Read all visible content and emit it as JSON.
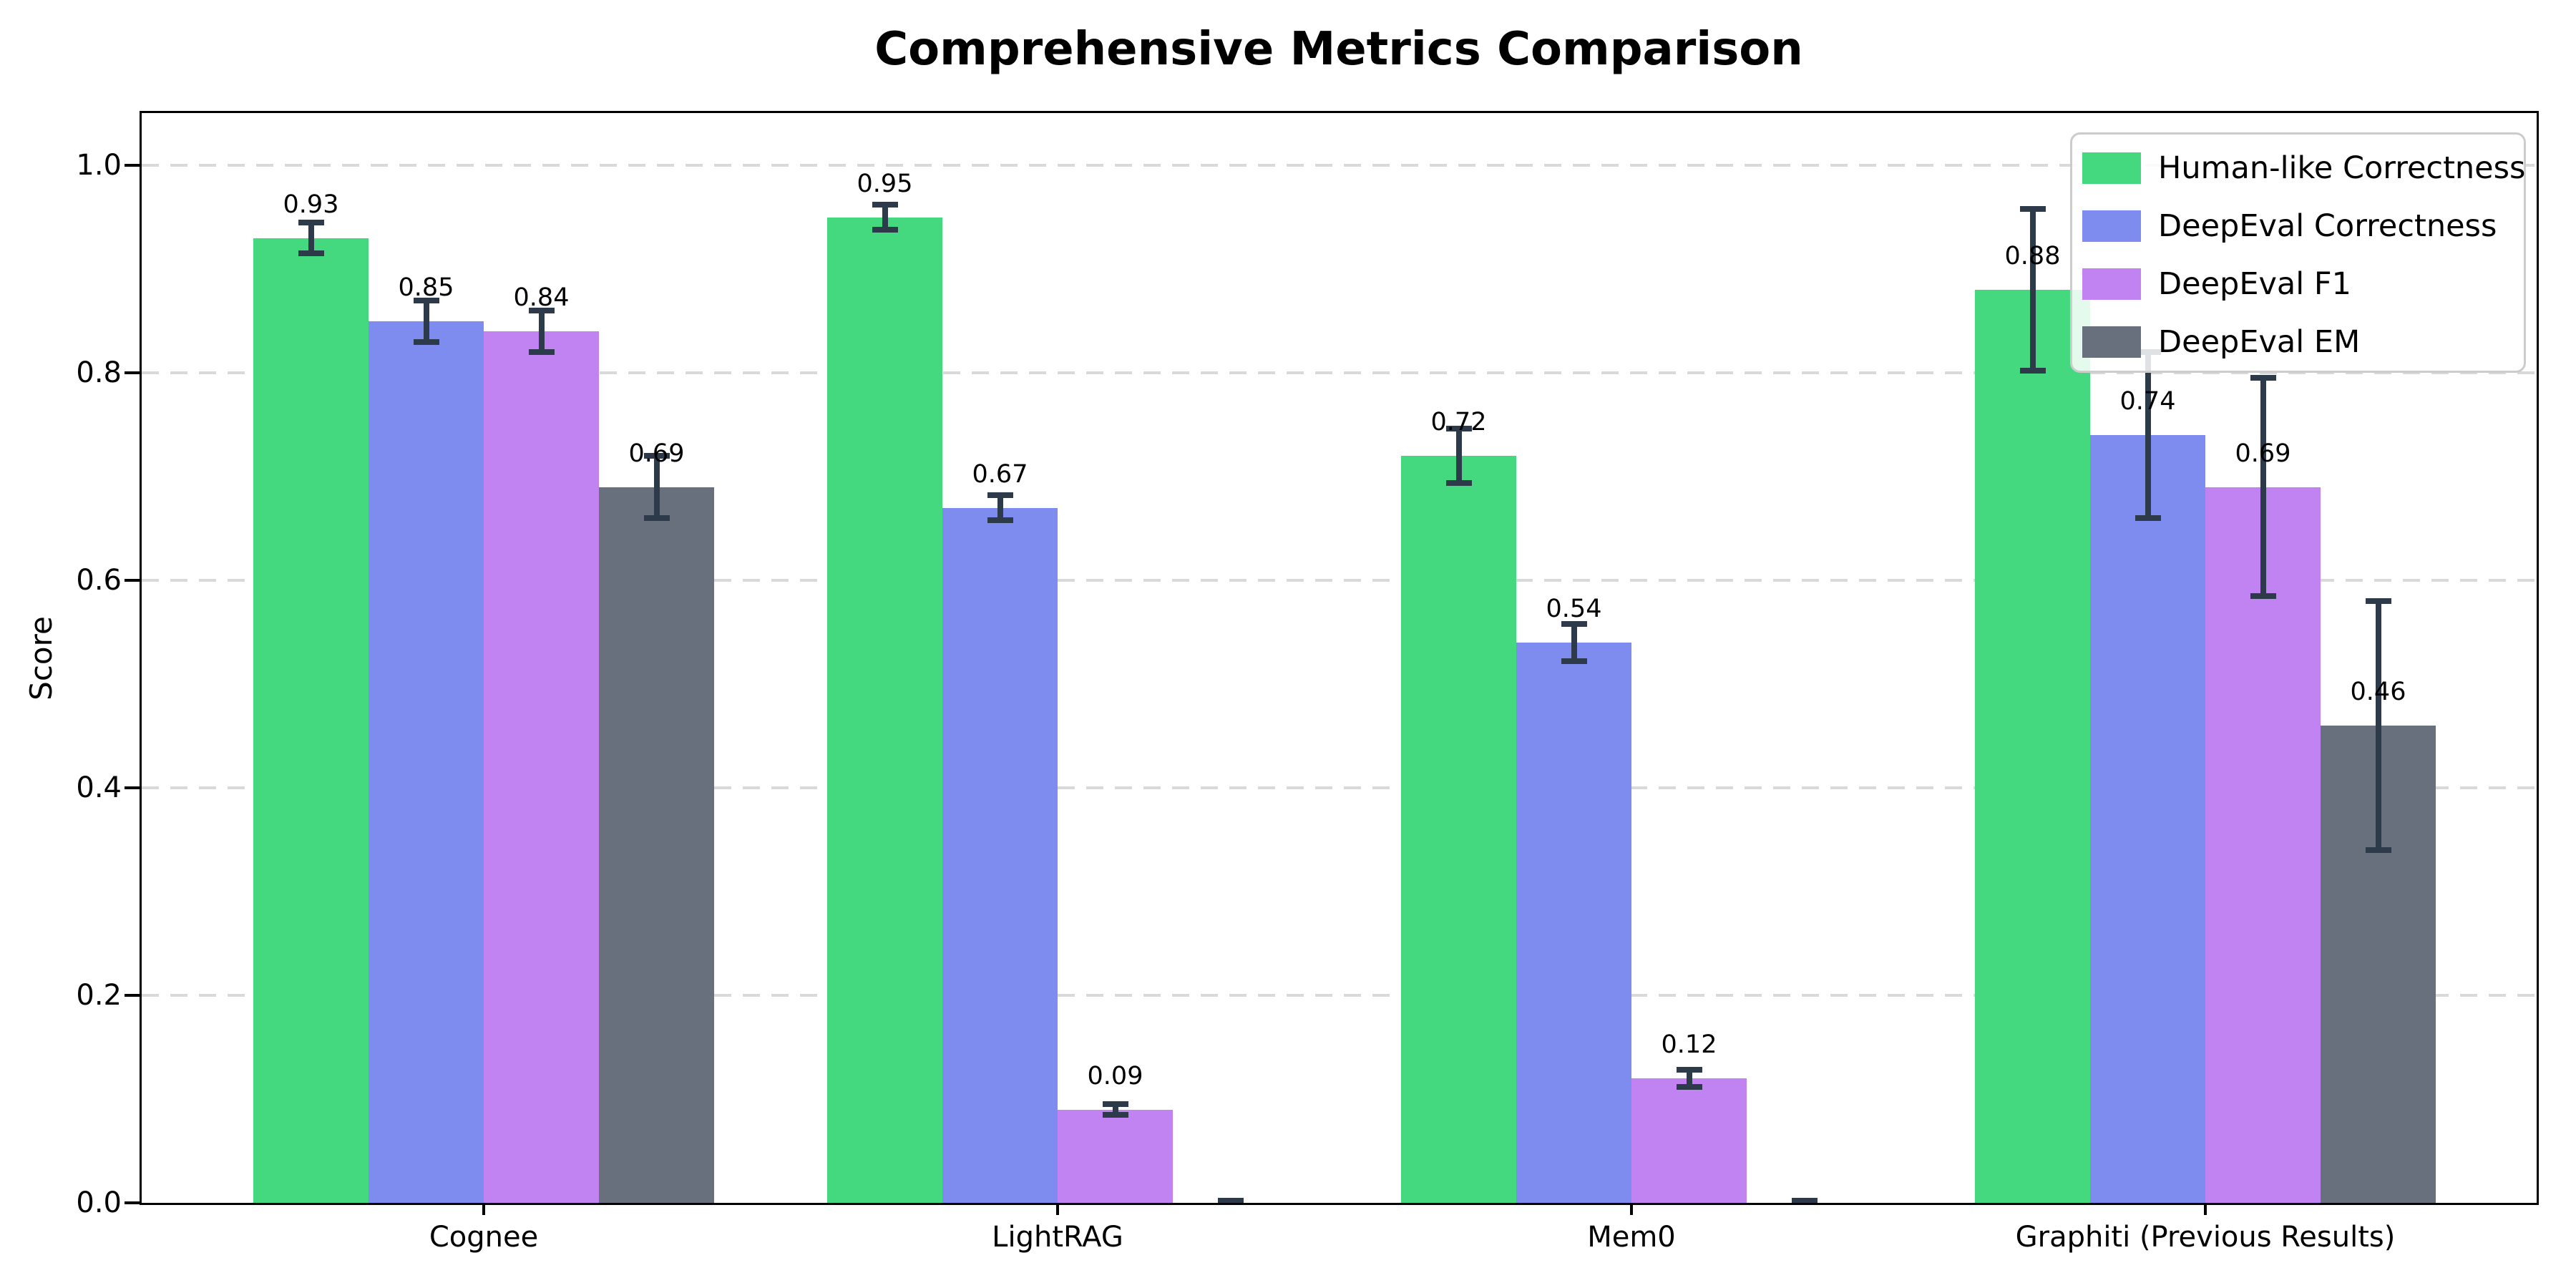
{
  "chart_data": {
    "type": "bar",
    "title": "Comprehensive Metrics Comparison",
    "ylabel": "Score",
    "xlabel": "",
    "categories": [
      "Cognee",
      "LightRAG",
      "Mem0",
      "Graphiti (Previous Results)"
    ],
    "series": [
      {
        "name": "Human-like Correctness",
        "color": "#44d97e",
        "values": [
          0.93,
          0.95,
          0.72,
          0.88
        ],
        "errors": [
          0.015,
          0.012,
          0.026,
          0.078
        ],
        "labels": [
          "0.93",
          "0.95",
          "0.72",
          "0.88"
        ]
      },
      {
        "name": "DeepEval Correctness",
        "color": "#7d8cee",
        "values": [
          0.85,
          0.67,
          0.54,
          0.74
        ],
        "errors": [
          0.02,
          0.012,
          0.018,
          0.08
        ],
        "labels": [
          "0.85",
          "0.67",
          "0.54",
          "0.74"
        ]
      },
      {
        "name": "DeepEval F1",
        "color": "#c183f2",
        "values": [
          0.84,
          0.09,
          0.12,
          0.69
        ],
        "errors": [
          0.02,
          0.005,
          0.008,
          0.105
        ],
        "labels": [
          "0.84",
          "0.09",
          "0.12",
          "0.69"
        ]
      },
      {
        "name": "DeepEval EM",
        "color": "#68707e",
        "values": [
          0.69,
          0.0,
          0.0,
          0.46
        ],
        "errors": [
          0.03,
          0.002,
          0.002,
          0.12
        ],
        "labels": [
          "0.69",
          "",
          "",
          "0.46"
        ]
      }
    ],
    "yticks": [
      "0.0",
      "0.2",
      "0.4",
      "0.6",
      "0.8",
      "1.0"
    ],
    "ylim": [
      0,
      1.05
    ],
    "grid": "horizontal-dashed",
    "gridline_values": [
      0.2,
      0.4,
      0.6,
      0.8,
      1.0
    ],
    "legend_position": "upper right",
    "error_bar_color": "#2d3a49"
  }
}
